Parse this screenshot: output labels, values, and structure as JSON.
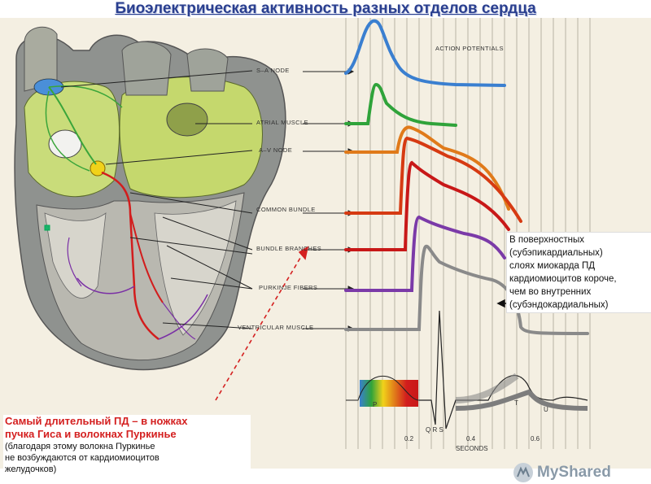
{
  "title": "Биоэлектрическая активность разных отделов сердца",
  "labels": {
    "action_potentials": "ACTION POTENTIALS",
    "sa_node": "S–A NODE",
    "atrial_muscle": "ATRIAL MUSCLE",
    "av_node": "A–V NODE",
    "common_bundle": "COMMON BUNDLE",
    "bundle_branches": "BUNDLE BRANCHES",
    "purkinje_fibers": "PURKINJE FIBERS",
    "ventricular_muscle": "VENTRICULAR MUSCLE"
  },
  "ecg": {
    "p": "P",
    "qrs": "Q R S",
    "t": "T",
    "u": "U"
  },
  "axis": {
    "ticks": [
      "0.2",
      "0.4",
      "0.6"
    ],
    "label": "SECONDS"
  },
  "note": {
    "line1": "В поверхностных",
    "line2": "(субэпикардиальных)",
    "line3": "слоях миокарда ПД",
    "line4": "кардиомиоцитов короче,",
    "line5": "чем во внутренних",
    "line6": "(субэндокардиальных)"
  },
  "bottom_note": {
    "line1": "Самый длительный ПД – в ножках",
    "line2": "пучка Гиса и волокнах Пуркинье",
    "line3": "(благодаря этому волокна Пуркинье",
    "line4": "не возбуждаются от кардиомиоцитов",
    "line5": "желудочков)"
  },
  "watermark": {
    "brand": "MyShared"
  },
  "colors": {
    "title": "#2a3f8f",
    "sa": "#3a7fd0",
    "atrial": "#2fa33a",
    "av": "#e07a1a",
    "common": "#d63a12",
    "bundle": "#c81818",
    "purkinje": "#7b3aa8",
    "ventricular": "#8a8a8a",
    "dashed": "#d42020"
  }
}
